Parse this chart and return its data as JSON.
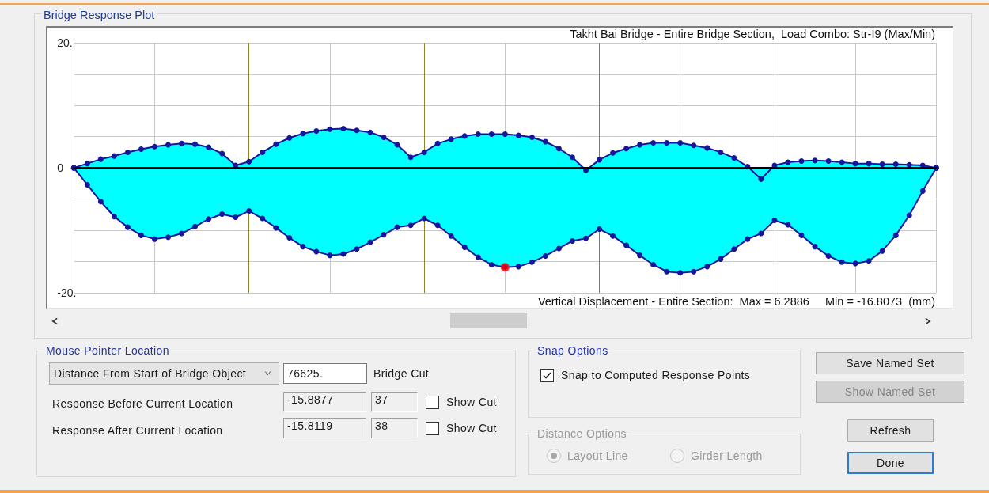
{
  "chart_data": [
    {
      "type": "area",
      "title": "Bridge Response Plot",
      "subtitle": "Takht Bai Bridge - Entire Bridge Section,  Load Combo: Str-I9 (Max/Min)",
      "annotations": [
        "Vertical Displacement - Entire Section:  Max = 6.2886     Min = -16.8073  (mm)"
      ],
      "categories": [
        null,
        null,
        null,
        null,
        null,
        null,
        null,
        null,
        null,
        null,
        null,
        null,
        null,
        null,
        null,
        null,
        null,
        null,
        null,
        null,
        null,
        null,
        null,
        null,
        null,
        null,
        null,
        null,
        null,
        null,
        null,
        null,
        null,
        null,
        null,
        null,
        null,
        null,
        null,
        null,
        null,
        null,
        null,
        null,
        null,
        null,
        null,
        null,
        null,
        null,
        null,
        null,
        null,
        null,
        null,
        null,
        null,
        null,
        null,
        null,
        null,
        null,
        null,
        null,
        null
      ],
      "ylim": [
        -20,
        20
      ],
      "yticks": [
        {
          "value": -20,
          "label": "-20."
        },
        {
          "value": -15,
          "label": null
        },
        {
          "value": -10,
          "label": null
        },
        {
          "value": -5,
          "label": null
        },
        0,
        {
          "value": 5,
          "label": null
        },
        {
          "value": 10,
          "label": null
        },
        {
          "value": 15,
          "label": null
        },
        {
          "value": 20,
          "label": "20."
        }
      ],
      "grid": true,
      "tick_labels": "y",
      "marker": "circle",
      "line_style": "solid",
      "series": [
        {
          "color": "#16169c",
          "values": [
            0,
            0.7,
            1.4,
            1.9,
            2.5,
            3.0,
            3.4,
            3.7,
            3.9,
            3.8,
            3.3,
            2.3,
            0.4,
            1.0,
            2.5,
            3.8,
            4.8,
            5.5,
            5.9,
            6.2,
            6.3,
            6.0,
            5.7,
            4.9,
            3.7,
            1.7,
            2.5,
            3.9,
            4.6,
            5.1,
            5.4,
            5.4,
            5.4,
            5.2,
            4.9,
            4.2,
            3.1,
            1.7,
            -0.4,
            1.3,
            2.4,
            3.1,
            3.7,
            4.0,
            4.0,
            4.0,
            3.6,
            3.2,
            2.5,
            1.6,
            0.2,
            -1.8,
            0.4,
            0.9,
            1.1,
            1.2,
            1.1,
            0.9,
            0.7,
            0.7,
            0.6,
            0.6,
            0.5,
            0.4,
            0
          ]
        },
        {
          "color": "#16169c",
          "values": [
            0,
            -2.7,
            -5.4,
            -7.8,
            -9.5,
            -10.8,
            -11.4,
            -11.1,
            -10.5,
            -9.4,
            -8.2,
            -7.4,
            -7.9,
            -6.9,
            -8.1,
            -9.6,
            -11.2,
            -12.6,
            -13.4,
            -14.0,
            -13.8,
            -13.0,
            -11.9,
            -10.7,
            -9.5,
            -9.2,
            -8.1,
            -9.2,
            -10.9,
            -12.7,
            -14.3,
            -15.5,
            -15.9,
            -15.8,
            -15.1,
            -14.1,
            -12.9,
            -11.7,
            -11.3,
            -9.8,
            -10.9,
            -12.4,
            -14.0,
            -15.5,
            -16.6,
            -16.8,
            -16.6,
            -15.8,
            -14.6,
            -13.0,
            -11.4,
            -10.5,
            -8.4,
            -9.1,
            -10.8,
            -12.6,
            -14.1,
            -15.1,
            -15.3,
            -14.9,
            -13.3,
            -10.8,
            -7.6,
            -3.7,
            0
          ]
        },
        {
          "type": "scatter",
          "color": "#ff0000",
          "values": [
            null,
            null,
            null,
            null,
            null,
            null,
            null,
            null,
            null,
            null,
            null,
            null,
            null,
            null,
            null,
            null,
            null,
            null,
            null,
            null,
            null,
            null,
            null,
            null,
            null,
            null,
            null,
            null,
            null,
            null,
            null,
            null,
            -15.9,
            null,
            null,
            null,
            null,
            null,
            null,
            null,
            null,
            null,
            null,
            null,
            null,
            null,
            null,
            null,
            null,
            null,
            null,
            null,
            null,
            null,
            null,
            null,
            null,
            null,
            null,
            null,
            null,
            null,
            null,
            null,
            null
          ]
        }
      ]
    },
    {
      "type": "other",
      "annotations": [
        "Mouse Pointer Location",
        "Distance From Start of Bridge Object",
        "76625.",
        "Bridge Cut",
        "Response Before Current Location",
        "-15.8877",
        "37",
        "Show Cut",
        "Response After Current Location",
        "-15.8119",
        "38",
        "Show Cut",
        "Snap Options",
        "Snap to Computed Response Points",
        "Distance Options",
        "Layout Line",
        "Girder Length",
        "Save Named Set",
        "Show Named Set",
        "Refresh",
        "Done"
      ]
    }
  ]
}
